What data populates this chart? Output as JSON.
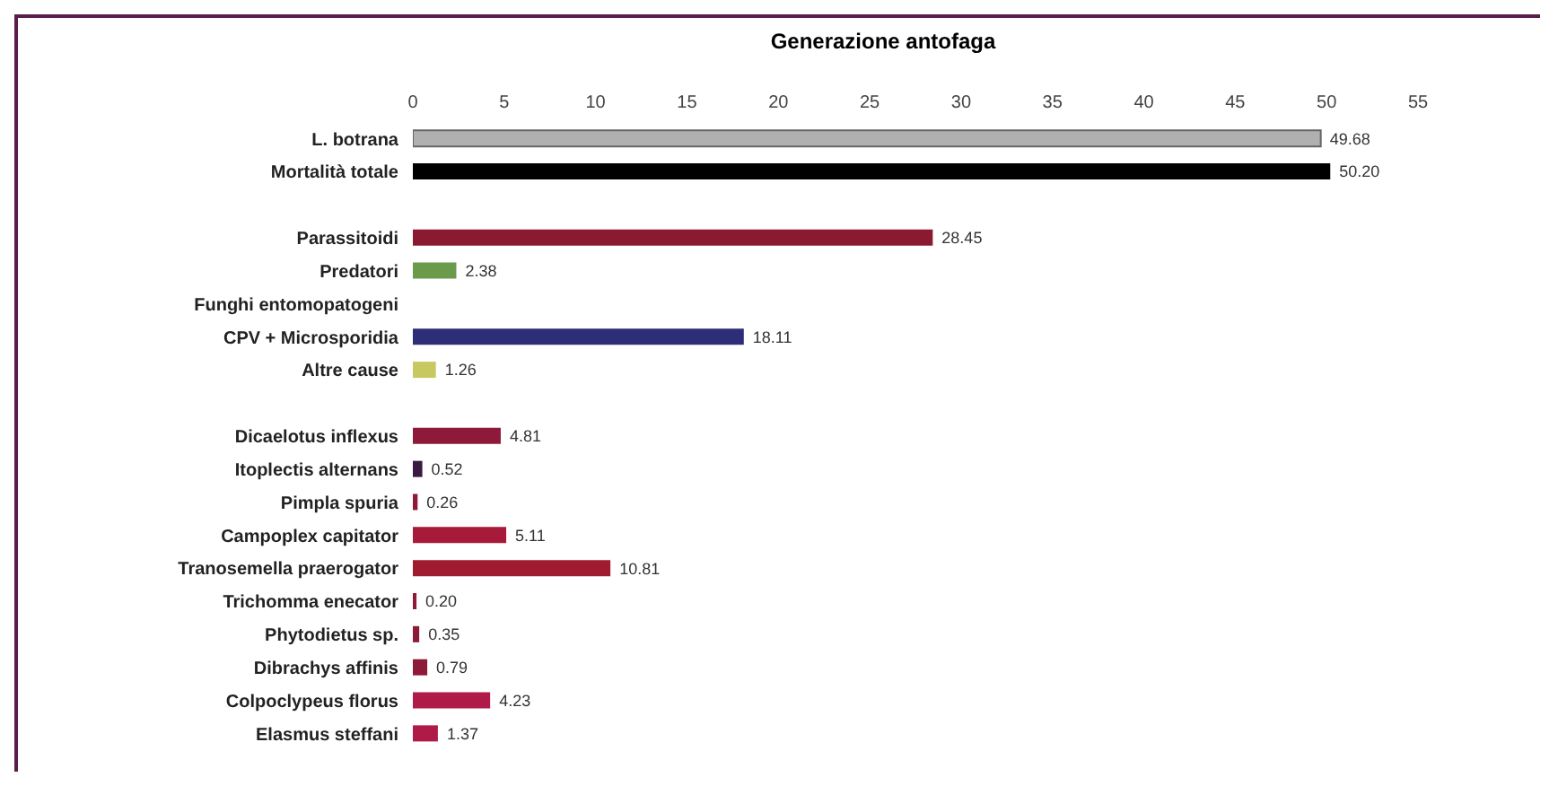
{
  "chart_data": {
    "type": "bar",
    "orientation": "horizontal",
    "title": "Generazione antofaga",
    "categories": [
      "L. botrana",
      "Mortalità totale",
      null,
      "Parassitoidi",
      "Predatori",
      "Funghi entomopatogeni",
      "CPV + Microsporidia",
      "Altre cause",
      null,
      "Dicaelotus inflexus",
      "Itoplectis alternans",
      "Pimpla spuria",
      "Campoplex capitator",
      "Tranosemella praerogator",
      "Trichomma enecator",
      "Phytodietus sp.",
      "Dibrachys affinis",
      "Colpoclypeus florus",
      "Elasmus steffani"
    ],
    "values": [
      49.68,
      50.2,
      null,
      28.45,
      2.38,
      null,
      18.11,
      1.26,
      null,
      4.81,
      0.52,
      0.26,
      5.11,
      10.81,
      0.2,
      0.35,
      0.79,
      4.23,
      1.37
    ],
    "value_labels": [
      "49.68",
      "50.20",
      null,
      "28.45",
      "2.38",
      null,
      "18.11",
      "1.26",
      null,
      "4.81",
      "0.52",
      "0.26",
      "5.11",
      "10.81",
      "0.20",
      "0.35",
      "0.79",
      "4.23",
      "1.37"
    ],
    "colors": [
      "#b0b0b0",
      "#000000",
      "#000000",
      "#8a1a30",
      "#6a9a4a",
      "#6a9a4a",
      "#2e2e78",
      "#c8c860",
      "#000000",
      "#8e1a3a",
      "#3a1a40",
      "#8e1a3a",
      "#a81a3a",
      "#a01a30",
      "#8e1a3a",
      "#8e1a3a",
      "#8e1a3a",
      "#b01a48",
      "#b01a48"
    ],
    "xlim": [
      0,
      55
    ],
    "xticks": [
      0,
      5,
      10,
      15,
      20,
      25,
      30,
      35,
      40,
      45,
      50,
      55
    ],
    "grid": false
  }
}
